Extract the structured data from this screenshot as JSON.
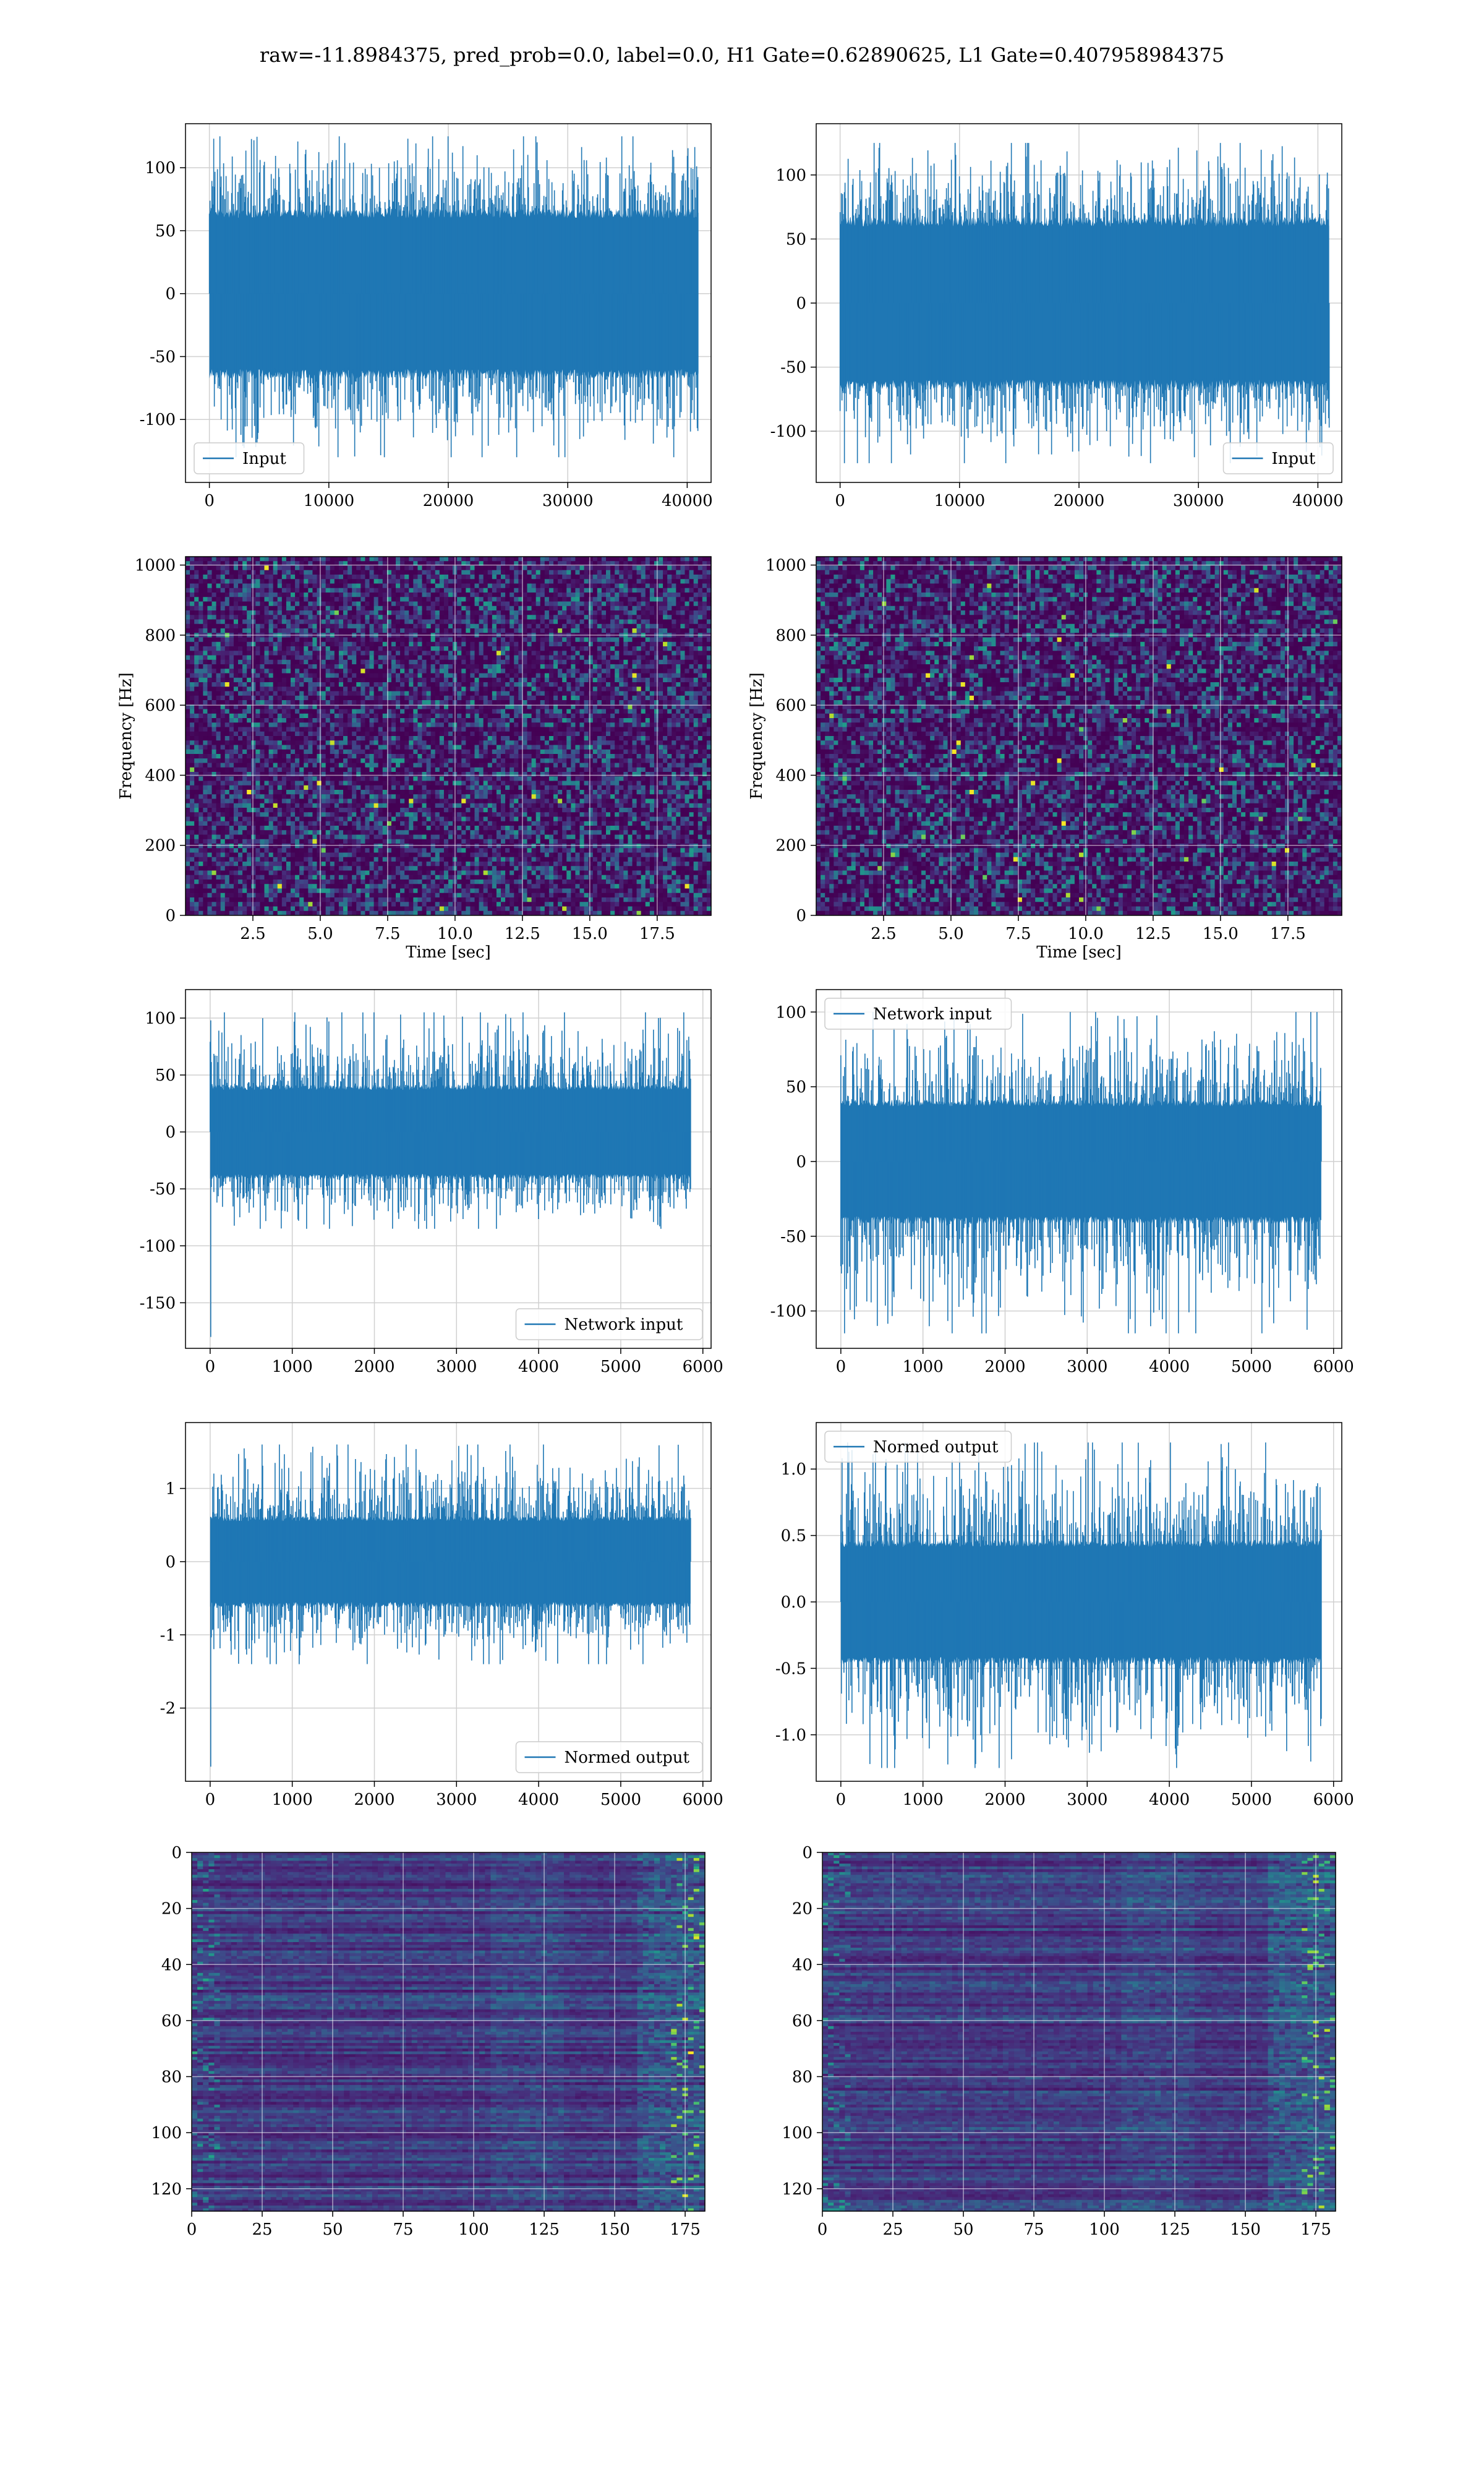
{
  "figure": {
    "title": "raw=-11.8984375, pred_prob=0.0, label=0.0, H1 Gate=0.62890625, L1 Gate=0.407958984375"
  },
  "colors": {
    "series": "#1f77b4",
    "grid": "#d0d0d0",
    "viridis": [
      "#440154",
      "#482878",
      "#3e4989",
      "#31688e",
      "#26828e",
      "#1f9e89",
      "#35b779",
      "#6ece58",
      "#b5de2b",
      "#fde725"
    ]
  },
  "chart_data": [
    {
      "id": "input-h1",
      "type": "line",
      "legend": "Input",
      "legend_loc": "lower-left",
      "xlim": [
        -2000,
        42000
      ],
      "ylim": [
        -150,
        135
      ],
      "xticks": [
        0,
        10000,
        20000,
        30000,
        40000
      ],
      "yticks": [
        -100,
        -50,
        0,
        50,
        100
      ],
      "n_points": 40960,
      "band": [
        -65,
        65
      ],
      "spike_max": 125,
      "spike_min": -130,
      "edge_spike": 0,
      "grid": true
    },
    {
      "id": "input-l1",
      "type": "line",
      "legend": "Input",
      "legend_loc": "lower-right",
      "xlim": [
        -2000,
        42000
      ],
      "ylim": [
        -140,
        140
      ],
      "xticks": [
        0,
        10000,
        20000,
        30000,
        40000
      ],
      "yticks": [
        -100,
        -50,
        0,
        50,
        100
      ],
      "n_points": 40960,
      "band": [
        -65,
        65
      ],
      "spike_max": 125,
      "spike_min": -125,
      "edge_spike": 0,
      "grid": true
    },
    {
      "id": "spec-h1",
      "type": "heatmap",
      "ylabel": "Frequency [Hz]",
      "xlabel": "Time [sec]",
      "xlim": [
        0,
        19.5
      ],
      "ylim": [
        0,
        1024
      ],
      "xticks": [
        2.5,
        5.0,
        7.5,
        10.0,
        12.5,
        15.0,
        17.5
      ],
      "yticks": [
        0,
        200,
        400,
        600,
        800,
        1000
      ],
      "grid": true
    },
    {
      "id": "spec-l1",
      "type": "heatmap",
      "ylabel": "Frequency [Hz]",
      "xlabel": "Time [sec]",
      "xlim": [
        0,
        19.5
      ],
      "ylim": [
        0,
        1024
      ],
      "xticks": [
        2.5,
        5.0,
        7.5,
        10.0,
        12.5,
        15.0,
        17.5
      ],
      "yticks": [
        0,
        200,
        400,
        600,
        800,
        1000
      ],
      "grid": true
    },
    {
      "id": "net-h1",
      "type": "line",
      "legend": "Network input",
      "legend_loc": "lower-right",
      "xlim": [
        -300,
        6100
      ],
      "ylim": [
        -190,
        125
      ],
      "xticks": [
        0,
        1000,
        2000,
        3000,
        4000,
        5000,
        6000
      ],
      "yticks": [
        -150,
        -100,
        -50,
        0,
        50,
        100
      ],
      "n_points": 5850,
      "band": [
        -40,
        40
      ],
      "spike_max": 105,
      "spike_min": -85,
      "edge_spike": -180,
      "grid": true
    },
    {
      "id": "net-l1",
      "type": "line",
      "legend": "Network input",
      "legend_loc": "upper-left",
      "xlim": [
        -300,
        6100
      ],
      "ylim": [
        -125,
        115
      ],
      "xticks": [
        0,
        1000,
        2000,
        3000,
        4000,
        5000,
        6000
      ],
      "yticks": [
        -100,
        -50,
        0,
        50,
        100
      ],
      "n_points": 5850,
      "band": [
        -40,
        40
      ],
      "spike_max": 100,
      "spike_min": -115,
      "edge_spike": 0,
      "grid": true
    },
    {
      "id": "norm-h1",
      "type": "line",
      "legend": "Normed output",
      "legend_loc": "lower-right",
      "xlim": [
        -300,
        6100
      ],
      "ylim": [
        -3.0,
        1.9
      ],
      "xticks": [
        0,
        1000,
        2000,
        3000,
        4000,
        5000,
        6000
      ],
      "yticks": [
        -2,
        -1,
        0,
        1
      ],
      "n_points": 5850,
      "band": [
        -0.6,
        0.6
      ],
      "spike_max": 1.6,
      "spike_min": -1.4,
      "edge_spike": -2.8,
      "grid": true
    },
    {
      "id": "norm-l1",
      "type": "line",
      "legend": "Normed output",
      "legend_loc": "upper-left",
      "xlim": [
        -300,
        6100
      ],
      "ylim": [
        -1.35,
        1.35
      ],
      "xticks": [
        0,
        1000,
        2000,
        3000,
        4000,
        5000,
        6000
      ],
      "yticks": [
        -1.0,
        -0.5,
        0.0,
        0.5,
        1.0
      ],
      "n_points": 5850,
      "band": [
        -0.45,
        0.45
      ],
      "spike_max": 1.2,
      "spike_min": -1.25,
      "edge_spike": 0,
      "grid": true
    },
    {
      "id": "feat-h1",
      "type": "heatmap",
      "xlim": [
        0,
        182
      ],
      "ylim": [
        128,
        0
      ],
      "xticks": [
        0,
        25,
        50,
        75,
        100,
        125,
        150,
        175
      ],
      "yticks": [
        0,
        20,
        40,
        60,
        80,
        100,
        120
      ],
      "grid": true
    },
    {
      "id": "feat-l1",
      "type": "heatmap",
      "xlim": [
        0,
        182
      ],
      "ylim": [
        128,
        0
      ],
      "xticks": [
        0,
        25,
        50,
        75,
        100,
        125,
        150,
        175
      ],
      "yticks": [
        0,
        20,
        40,
        60,
        80,
        100,
        120
      ],
      "grid": true
    }
  ]
}
